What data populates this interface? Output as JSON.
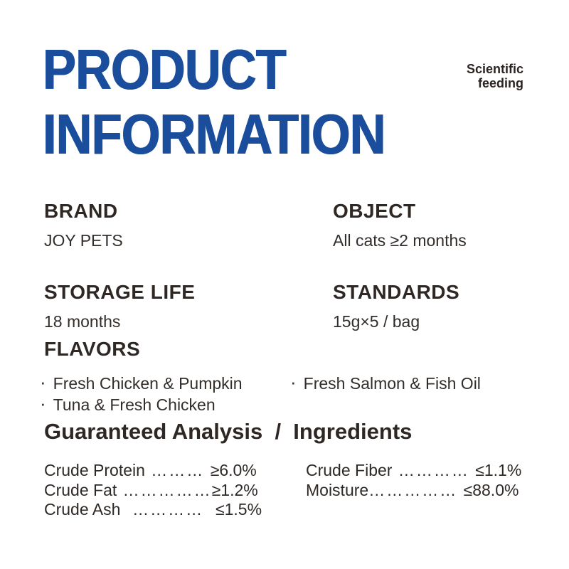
{
  "badge": {
    "line1": "Scientific",
    "line2": "feeding"
  },
  "title": {
    "line1": "PRODUCT",
    "line2": "INFORMATION"
  },
  "specs": [
    {
      "label": "BRAND",
      "value": "JOY PETS"
    },
    {
      "label": "OBJECT",
      "value": "All cats ≥2 months"
    },
    {
      "label": "STORAGE LIFE",
      "value": "18 months"
    },
    {
      "label": "STANDARDS",
      "value": "15g×5 / bag"
    }
  ],
  "flavors": {
    "heading": "FLAVORS",
    "bullet": "·",
    "items_left": [
      "Fresh Chicken & Pumpkin",
      "Tuna & Fresh Chicken"
    ],
    "items_right": [
      "Fresh Salmon & Fish Oil"
    ]
  },
  "analysis": {
    "heading": "Guaranteed Analysis  /  Ingredients",
    "left": [
      {
        "name": "Crude Protein",
        "leader": " ……… ",
        "value": "≥6.0%"
      },
      {
        "name": "Crude Fat",
        "leader": " ……………",
        "value": "≥1.2%"
      },
      {
        "name": "Crude Ash",
        "leader": "  …………  ",
        "value": "≤1.5%"
      }
    ],
    "right": [
      {
        "name": "Crude Fiber",
        "leader": " ………… ",
        "value": "≤1.1%"
      },
      {
        "name": "Moisture",
        "leader": "…………… ",
        "value": "≤88.0%"
      }
    ]
  },
  "colors": {
    "accent": "#1a4e9c",
    "text": "#322b27",
    "background": "#ffffff"
  }
}
